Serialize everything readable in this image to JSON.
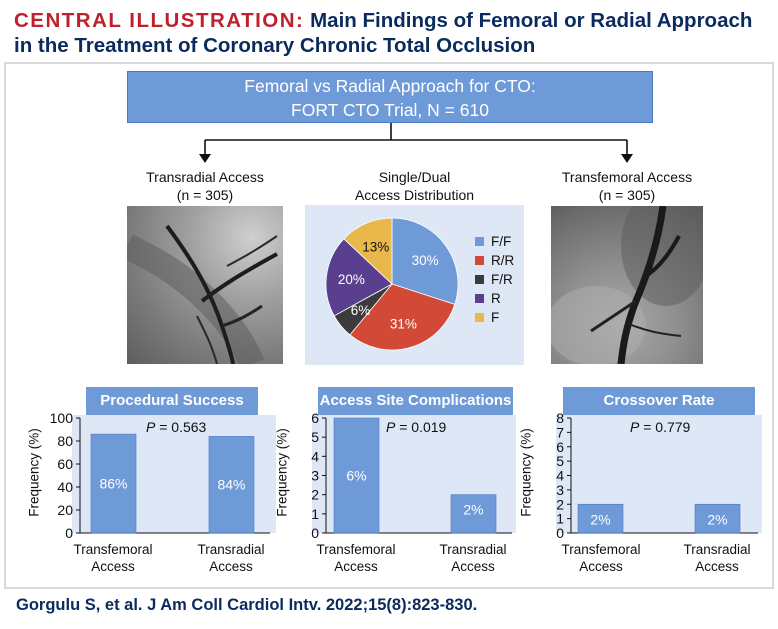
{
  "header": {
    "lead": "CENTRAL ILLUSTRATION:",
    "title": "Main Findings of Femoral or Radial Approach in the Treatment of Coronary Chronic Total Occlusion"
  },
  "banner": {
    "line1": "Femoral vs Radial Approach for CTO:",
    "line2": "FORT CTO Trial, N = 610"
  },
  "radial_access": {
    "label": "Transradial Access",
    "count": "(n = 305)"
  },
  "femoral_access": {
    "label": "Transfemoral Access",
    "count": "(n = 305)"
  },
  "distribution": {
    "label_line1": "Single/Dual",
    "label_line2": "Access Distribution"
  },
  "citation": "Gorgulu S, et al. J Am Coll Cardiol Intv. 2022;15(8):823-830.",
  "colors": {
    "title_red": "#c0202b",
    "navy": "#0b2a5e",
    "bar_blue": "#6f9ad8",
    "panel_blue": "#dde7f5"
  },
  "chart_data": [
    {
      "type": "pie",
      "title": "",
      "labels": [
        "F/F",
        "R/R",
        "F/R",
        "R",
        "F"
      ],
      "values": [
        30,
        31,
        6,
        20,
        13
      ],
      "value_labels": [
        "30%",
        "31%",
        "6%",
        "20%",
        "13%"
      ],
      "colors": [
        "#6f9ad8",
        "#d24a37",
        "#3b3b3b",
        "#5a3f8e",
        "#e9b84a"
      ],
      "legend": "right"
    },
    {
      "type": "bar",
      "title": "Procedural Success",
      "categories": [
        "Transfemoral Access",
        "Transradial Access"
      ],
      "values": [
        86,
        84
      ],
      "value_labels": [
        "86%",
        "84%"
      ],
      "ylabel": "Frequency (%)",
      "ylim": [
        0,
        100
      ],
      "yticks": [
        0,
        20,
        40,
        60,
        80,
        100
      ],
      "p_label": "P",
      "p_value": " = 0.563"
    },
    {
      "type": "bar",
      "title": "Access Site Complications",
      "categories": [
        "Transfemoral Access",
        "Transradial Access"
      ],
      "values": [
        6,
        2
      ],
      "value_labels": [
        "6%",
        "2%"
      ],
      "ylabel": "Frequency (%)",
      "ylim": [
        0,
        6
      ],
      "yticks": [
        0,
        1,
        2,
        3,
        4,
        5,
        6
      ],
      "p_label": "P",
      "p_value": " = 0.019"
    },
    {
      "type": "bar",
      "title": "Crossover Rate",
      "categories": [
        "Transfemoral Access",
        "Transradial Access"
      ],
      "values": [
        2,
        2
      ],
      "value_labels": [
        "2%",
        "2%"
      ],
      "ylabel": "Frequency (%)",
      "ylim": [
        0,
        8
      ],
      "yticks": [
        0,
        1,
        2,
        3,
        4,
        5,
        6,
        7,
        8
      ],
      "p_label": "P",
      "p_value": " = 0.779"
    }
  ]
}
